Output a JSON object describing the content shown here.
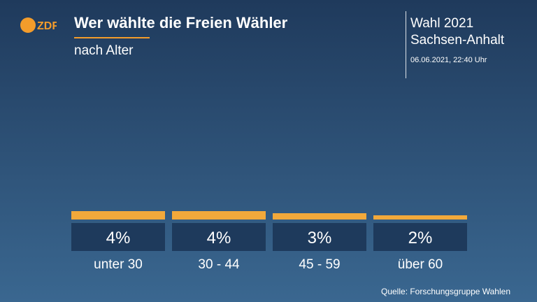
{
  "header": {
    "logo_text": "ZDF",
    "title": "Wer wählte die Freien Wähler",
    "subtitle": "nach Alter",
    "election_line1": "Wahl 2021",
    "election_line2": "Sachsen-Anhalt",
    "datetime": "06.06.2021, 22:40 Uhr"
  },
  "footer": {
    "source": "Quelle: Forschungsgruppe Wahlen"
  },
  "colors": {
    "accent": "#f39c2b",
    "bar": "#f2a93b",
    "label_box": "#1e3a5c"
  },
  "chart_data": {
    "type": "bar",
    "title": "Wer wählte die Freien Wähler",
    "subtitle": "nach Alter",
    "categories": [
      "unter 30",
      "30 - 44",
      "45 - 59",
      "über 60"
    ],
    "values": [
      4,
      4,
      3,
      2
    ],
    "value_labels": [
      "4%",
      "4%",
      "3%",
      "2%"
    ],
    "unit": "%",
    "ylim": [
      0,
      40
    ],
    "grid": false,
    "legend": "none"
  }
}
